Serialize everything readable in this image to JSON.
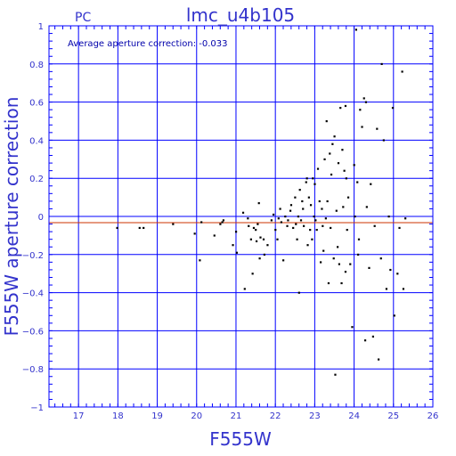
{
  "chart_data": {
    "type": "scatter",
    "title": "lmc_u4b105",
    "detector_label": "PC",
    "annotation": "Average aperture correction: -0.033",
    "xlabel": "F555W",
    "ylabel": "F555W aperture correction",
    "xlim": [
      16.25,
      26
    ],
    "ylim": [
      -1,
      1
    ],
    "xticks": [
      17,
      18,
      19,
      20,
      21,
      22,
      23,
      24,
      25,
      26
    ],
    "yticks": [
      1,
      0.8,
      0.6,
      0.4,
      0.2,
      0,
      -0.2,
      -0.4,
      -0.6,
      -0.8,
      -1
    ],
    "ytick_labels": [
      "1",
      "0.8",
      "0.6",
      "0.4",
      "0.2",
      "0",
      "−0.2",
      "−0.4",
      "−0.6",
      "−0.8",
      "−1"
    ],
    "grid": true,
    "reference_lines": [
      {
        "y": 0,
        "color": "#0000ff"
      },
      {
        "y": -0.033,
        "color": "#cc3300"
      }
    ],
    "colors": {
      "axes": "#0000ff",
      "text": "#3333cc",
      "average_line": "#cc3300",
      "points": "#000000"
    },
    "points": [
      [
        17.98,
        -0.06
      ],
      [
        18.55,
        -0.06
      ],
      [
        18.65,
        -0.06
      ],
      [
        19.4,
        -0.04
      ],
      [
        19.95,
        -0.09
      ],
      [
        20.08,
        -0.23
      ],
      [
        20.12,
        -0.03
      ],
      [
        20.45,
        -0.1
      ],
      [
        20.6,
        -0.04
      ],
      [
        20.65,
        -0.03
      ],
      [
        20.68,
        -0.02
      ],
      [
        20.92,
        -0.15
      ],
      [
        21.0,
        -0.08
      ],
      [
        21.02,
        -0.19
      ],
      [
        21.18,
        0.02
      ],
      [
        21.22,
        -0.38
      ],
      [
        21.3,
        -0.01
      ],
      [
        21.32,
        -0.05
      ],
      [
        21.38,
        -0.12
      ],
      [
        21.42,
        -0.3
      ],
      [
        21.45,
        -0.06
      ],
      [
        21.5,
        -0.07
      ],
      [
        21.52,
        -0.13
      ],
      [
        21.55,
        -0.04
      ],
      [
        21.58,
        0.07
      ],
      [
        21.6,
        -0.22
      ],
      [
        21.62,
        -0.11
      ],
      [
        21.7,
        -0.12
      ],
      [
        21.72,
        -0.2
      ],
      [
        21.8,
        -0.15
      ],
      [
        21.9,
        -0.02
      ],
      [
        21.95,
        0.01
      ],
      [
        22.0,
        -0.07
      ],
      [
        22.05,
        -0.12
      ],
      [
        22.08,
        -0.01
      ],
      [
        22.12,
        0.04
      ],
      [
        22.15,
        -0.03
      ],
      [
        22.2,
        -0.23
      ],
      [
        22.25,
        0.0
      ],
      [
        22.3,
        -0.05
      ],
      [
        22.32,
        -0.02
      ],
      [
        22.38,
        0.03
      ],
      [
        22.4,
        0.06
      ],
      [
        22.45,
        -0.06
      ],
      [
        22.5,
        0.1
      ],
      [
        22.52,
        -0.04
      ],
      [
        22.55,
        -0.12
      ],
      [
        22.58,
        0.0
      ],
      [
        22.6,
        -0.4
      ],
      [
        22.62,
        0.14
      ],
      [
        22.65,
        -0.02
      ],
      [
        22.68,
        0.08
      ],
      [
        22.7,
        0.04
      ],
      [
        22.72,
        -0.05
      ],
      [
        22.78,
        0.18
      ],
      [
        22.8,
        0.2
      ],
      [
        22.82,
        -0.15
      ],
      [
        22.85,
        0.1
      ],
      [
        22.88,
        -0.07
      ],
      [
        22.9,
        0.06
      ],
      [
        22.93,
        -0.12
      ],
      [
        22.95,
        0.2
      ],
      [
        22.98,
        0.0
      ],
      [
        23.0,
        0.17
      ],
      [
        23.02,
        -0.02
      ],
      [
        23.05,
        -0.07
      ],
      [
        23.08,
        0.25
      ],
      [
        23.12,
        0.08
      ],
      [
        23.15,
        -0.24
      ],
      [
        23.18,
        0.04
      ],
      [
        23.2,
        -0.05
      ],
      [
        23.22,
        -0.18
      ],
      [
        23.25,
        0.3
      ],
      [
        23.28,
        -0.01
      ],
      [
        23.3,
        0.5
      ],
      [
        23.32,
        0.08
      ],
      [
        23.35,
        -0.35
      ],
      [
        23.38,
        0.33
      ],
      [
        23.4,
        -0.06
      ],
      [
        23.42,
        0.22
      ],
      [
        23.45,
        0.38
      ],
      [
        23.48,
        -0.22
      ],
      [
        23.5,
        0.42
      ],
      [
        23.52,
        -0.83
      ],
      [
        23.55,
        0.03
      ],
      [
        23.58,
        -0.16
      ],
      [
        23.6,
        0.28
      ],
      [
        23.62,
        -0.25
      ],
      [
        23.65,
        0.57
      ],
      [
        23.68,
        -0.35
      ],
      [
        23.7,
        0.35
      ],
      [
        23.72,
        0.05
      ],
      [
        23.75,
        0.24
      ],
      [
        23.78,
        -0.29
      ],
      [
        23.8,
        0.2
      ],
      [
        23.82,
        -0.07
      ],
      [
        23.85,
        0.1
      ],
      [
        23.9,
        -0.25
      ],
      [
        23.95,
        -0.58
      ],
      [
        24.0,
        0.27
      ],
      [
        24.02,
        0.0
      ],
      [
        24.05,
        0.98
      ],
      [
        24.08,
        0.18
      ],
      [
        24.1,
        -0.2
      ],
      [
        24.12,
        -0.12
      ],
      [
        24.15,
        0.56
      ],
      [
        24.2,
        0.47
      ],
      [
        24.25,
        0.62
      ],
      [
        24.28,
        -0.65
      ],
      [
        24.3,
        0.6
      ],
      [
        24.32,
        0.05
      ],
      [
        24.38,
        -0.27
      ],
      [
        24.42,
        0.17
      ],
      [
        24.48,
        -0.63
      ],
      [
        24.52,
        -0.05
      ],
      [
        24.58,
        0.46
      ],
      [
        24.62,
        -0.75
      ],
      [
        24.68,
        -0.22
      ],
      [
        24.7,
        0.8
      ],
      [
        24.75,
        0.4
      ],
      [
        24.82,
        -0.38
      ],
      [
        24.88,
        0.0
      ],
      [
        24.92,
        -0.28
      ],
      [
        24.98,
        0.57
      ],
      [
        25.02,
        -0.52
      ],
      [
        25.1,
        -0.3
      ],
      [
        25.15,
        -0.06
      ],
      [
        25.22,
        0.76
      ],
      [
        25.25,
        -0.38
      ],
      [
        25.3,
        -0.01
      ],
      [
        23.78,
        0.58
      ]
    ]
  }
}
